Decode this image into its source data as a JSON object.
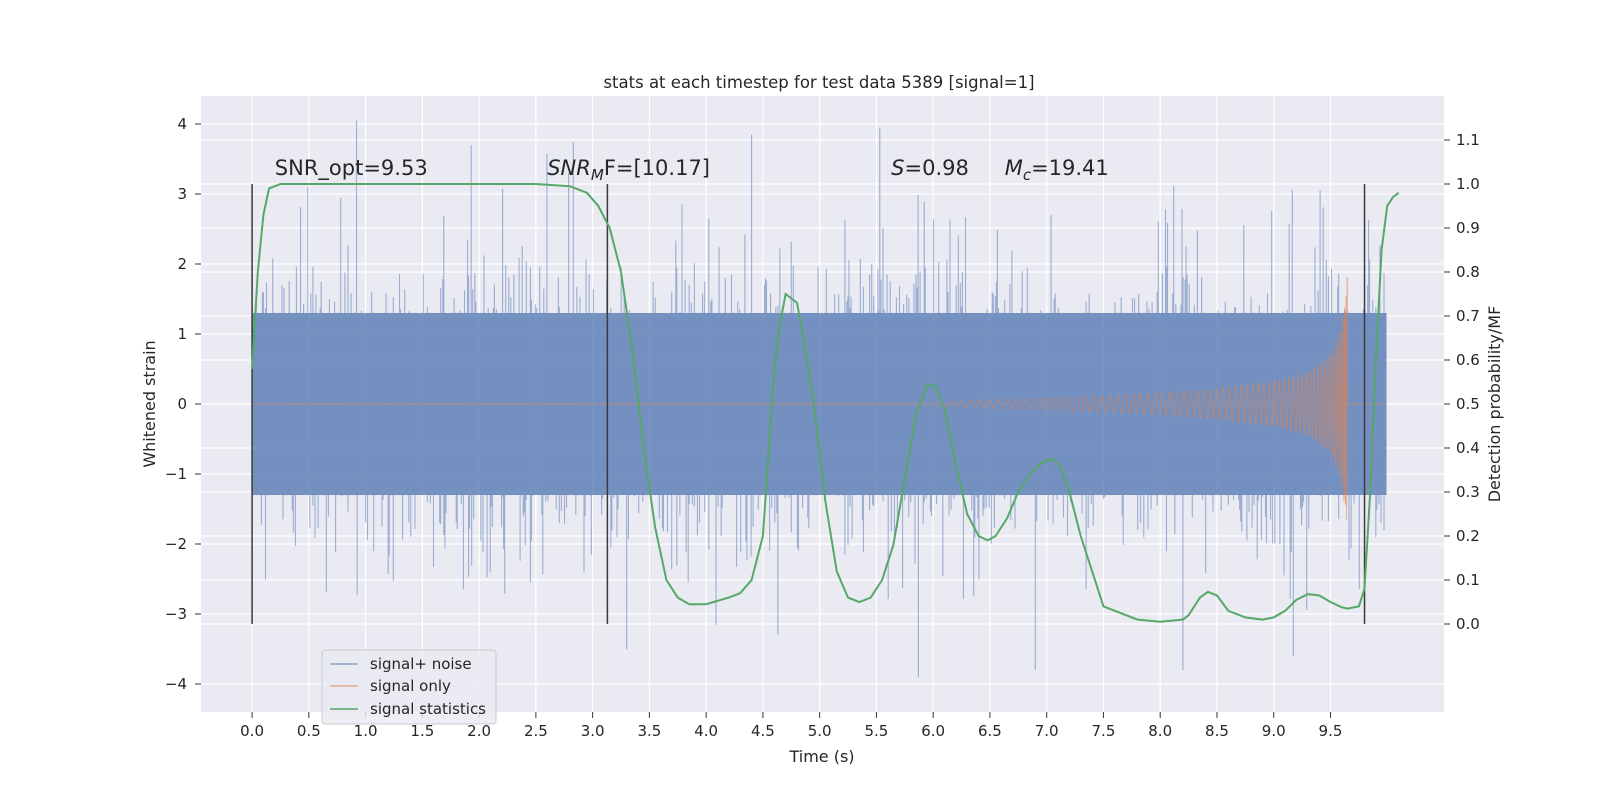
{
  "chart_data": {
    "type": "line",
    "title": "stats at each timestep for test data 5389 [signal=1]",
    "xlabel": "Time (s)",
    "ylabel": "Whitened strain",
    "y2label": "Detection probability/MF",
    "xlim": [
      -0.45,
      10.5
    ],
    "ylim": [
      -4.4,
      4.4
    ],
    "y2lim": [
      -0.2,
      1.2
    ],
    "x_ticks": [
      0.0,
      0.5,
      1.0,
      1.5,
      2.0,
      2.5,
      3.0,
      3.5,
      4.0,
      4.5,
      5.0,
      5.5,
      6.0,
      6.5,
      7.0,
      7.5,
      8.0,
      8.5,
      9.0,
      9.5
    ],
    "x_tick_labels": [
      "0.0",
      "0.5",
      "1.0",
      "1.5",
      "2.0",
      "2.5",
      "3.0",
      "3.5",
      "4.0",
      "4.5",
      "5.0",
      "5.5",
      "6.0",
      "6.5",
      "7.0",
      "7.5",
      "8.0",
      "8.5",
      "9.0",
      "9.5"
    ],
    "y_ticks": [
      4,
      3,
      2,
      1,
      0,
      -1,
      -2,
      -3,
      -4
    ],
    "y_tick_labels": [
      "4",
      "3",
      "2",
      "1",
      "0",
      "−1",
      "−2",
      "−3",
      "−4"
    ],
    "y2_ticks": [
      1.1,
      1.0,
      0.9,
      0.8,
      0.7,
      0.6,
      0.5,
      0.4,
      0.3,
      0.2,
      0.1,
      0.0
    ],
    "y2_tick_labels": [
      "1.1",
      "1.0",
      "0.9",
      "0.8",
      "0.7",
      "0.6",
      "0.5",
      "0.4",
      "0.3",
      "0.2",
      "0.1",
      "0.0"
    ],
    "grid": true,
    "legend_position": "lower-left",
    "series": [
      {
        "name": "signal+ noise",
        "color": "#4c72b0",
        "axis": "left",
        "x_range": [
          0.0,
          9.99
        ],
        "band_core": [
          -1.3,
          1.3
        ],
        "typical_extremes": [
          -2.6,
          2.6
        ],
        "max": 4.05,
        "min": -3.9
      },
      {
        "name": "signal only",
        "color": "#dd8452",
        "axis": "left",
        "x_range": [
          0.0,
          9.99
        ],
        "chirp_peak_time": 9.65,
        "peak_amplitude": 1.9,
        "samples": [
          [
            0.0,
            0.0
          ],
          [
            5.8,
            0.02
          ],
          [
            6.5,
            0.06
          ],
          [
            7.0,
            0.09
          ],
          [
            7.5,
            0.12
          ],
          [
            8.0,
            0.16
          ],
          [
            8.5,
            0.22
          ],
          [
            9.0,
            0.32
          ],
          [
            9.3,
            0.45
          ],
          [
            9.5,
            0.7
          ],
          [
            9.6,
            1.1
          ],
          [
            9.65,
            1.9
          ],
          [
            9.7,
            0.0
          ],
          [
            9.99,
            0.0
          ]
        ]
      },
      {
        "name": "signal statistics",
        "color": "#55a868",
        "axis": "right",
        "points": [
          [
            0.0,
            0.58
          ],
          [
            0.05,
            0.8
          ],
          [
            0.1,
            0.93
          ],
          [
            0.15,
            0.99
          ],
          [
            0.25,
            1.0
          ],
          [
            1.0,
            1.0
          ],
          [
            2.0,
            1.0
          ],
          [
            2.5,
            1.0
          ],
          [
            2.8,
            0.995
          ],
          [
            2.95,
            0.98
          ],
          [
            3.05,
            0.95
          ],
          [
            3.15,
            0.9
          ],
          [
            3.25,
            0.8
          ],
          [
            3.35,
            0.62
          ],
          [
            3.45,
            0.4
          ],
          [
            3.55,
            0.22
          ],
          [
            3.65,
            0.1
          ],
          [
            3.75,
            0.06
          ],
          [
            3.85,
            0.045
          ],
          [
            4.0,
            0.045
          ],
          [
            4.2,
            0.06
          ],
          [
            4.3,
            0.07
          ],
          [
            4.4,
            0.1
          ],
          [
            4.5,
            0.2
          ],
          [
            4.6,
            0.58
          ],
          [
            4.65,
            0.68
          ],
          [
            4.7,
            0.75
          ],
          [
            4.8,
            0.73
          ],
          [
            4.85,
            0.66
          ],
          [
            4.95,
            0.5
          ],
          [
            5.05,
            0.28
          ],
          [
            5.15,
            0.12
          ],
          [
            5.25,
            0.06
          ],
          [
            5.35,
            0.05
          ],
          [
            5.45,
            0.06
          ],
          [
            5.55,
            0.1
          ],
          [
            5.65,
            0.18
          ],
          [
            5.75,
            0.33
          ],
          [
            5.85,
            0.48
          ],
          [
            5.95,
            0.545
          ],
          [
            6.02,
            0.54
          ],
          [
            6.1,
            0.49
          ],
          [
            6.2,
            0.36
          ],
          [
            6.3,
            0.25
          ],
          [
            6.4,
            0.2
          ],
          [
            6.48,
            0.19
          ],
          [
            6.55,
            0.2
          ],
          [
            6.65,
            0.24
          ],
          [
            6.75,
            0.3
          ],
          [
            6.85,
            0.34
          ],
          [
            6.95,
            0.365
          ],
          [
            7.05,
            0.375
          ],
          [
            7.12,
            0.36
          ],
          [
            7.2,
            0.3
          ],
          [
            7.3,
            0.2
          ],
          [
            7.4,
            0.12
          ],
          [
            7.5,
            0.04
          ],
          [
            7.6,
            0.03
          ],
          [
            7.8,
            0.01
          ],
          [
            8.0,
            0.005
          ],
          [
            8.2,
            0.01
          ],
          [
            8.25,
            0.02
          ],
          [
            8.35,
            0.06
          ],
          [
            8.42,
            0.073
          ],
          [
            8.5,
            0.065
          ],
          [
            8.6,
            0.03
          ],
          [
            8.75,
            0.015
          ],
          [
            8.9,
            0.01
          ],
          [
            9.0,
            0.015
          ],
          [
            9.1,
            0.03
          ],
          [
            9.2,
            0.055
          ],
          [
            9.3,
            0.068
          ],
          [
            9.4,
            0.065
          ],
          [
            9.5,
            0.05
          ],
          [
            9.6,
            0.038
          ],
          [
            9.65,
            0.035
          ],
          [
            9.75,
            0.04
          ],
          [
            9.8,
            0.08
          ],
          [
            9.85,
            0.3
          ],
          [
            9.9,
            0.6
          ],
          [
            9.95,
            0.85
          ],
          [
            10.0,
            0.95
          ],
          [
            10.05,
            0.97
          ],
          [
            10.1,
            0.98
          ]
        ]
      }
    ],
    "vertical_markers": [
      0.0,
      3.13,
      9.8
    ],
    "annotations": [
      {
        "id": "snr-opt",
        "x": 0.2,
        "text": "SNR_opt=9.53"
      },
      {
        "id": "snr-mf",
        "x": 2.6,
        "text_main": "SNR",
        "text_sub": "M",
        "text_rest": "F=[10.17]"
      },
      {
        "id": "stat-s",
        "x": 5.63,
        "text_main": "S",
        "text_rest": "=0.98"
      },
      {
        "id": "mass-c",
        "x": 6.63,
        "text_main": "M",
        "text_sub": "c",
        "text_rest": "=19.41"
      }
    ],
    "annotation_y2": 1.02
  }
}
